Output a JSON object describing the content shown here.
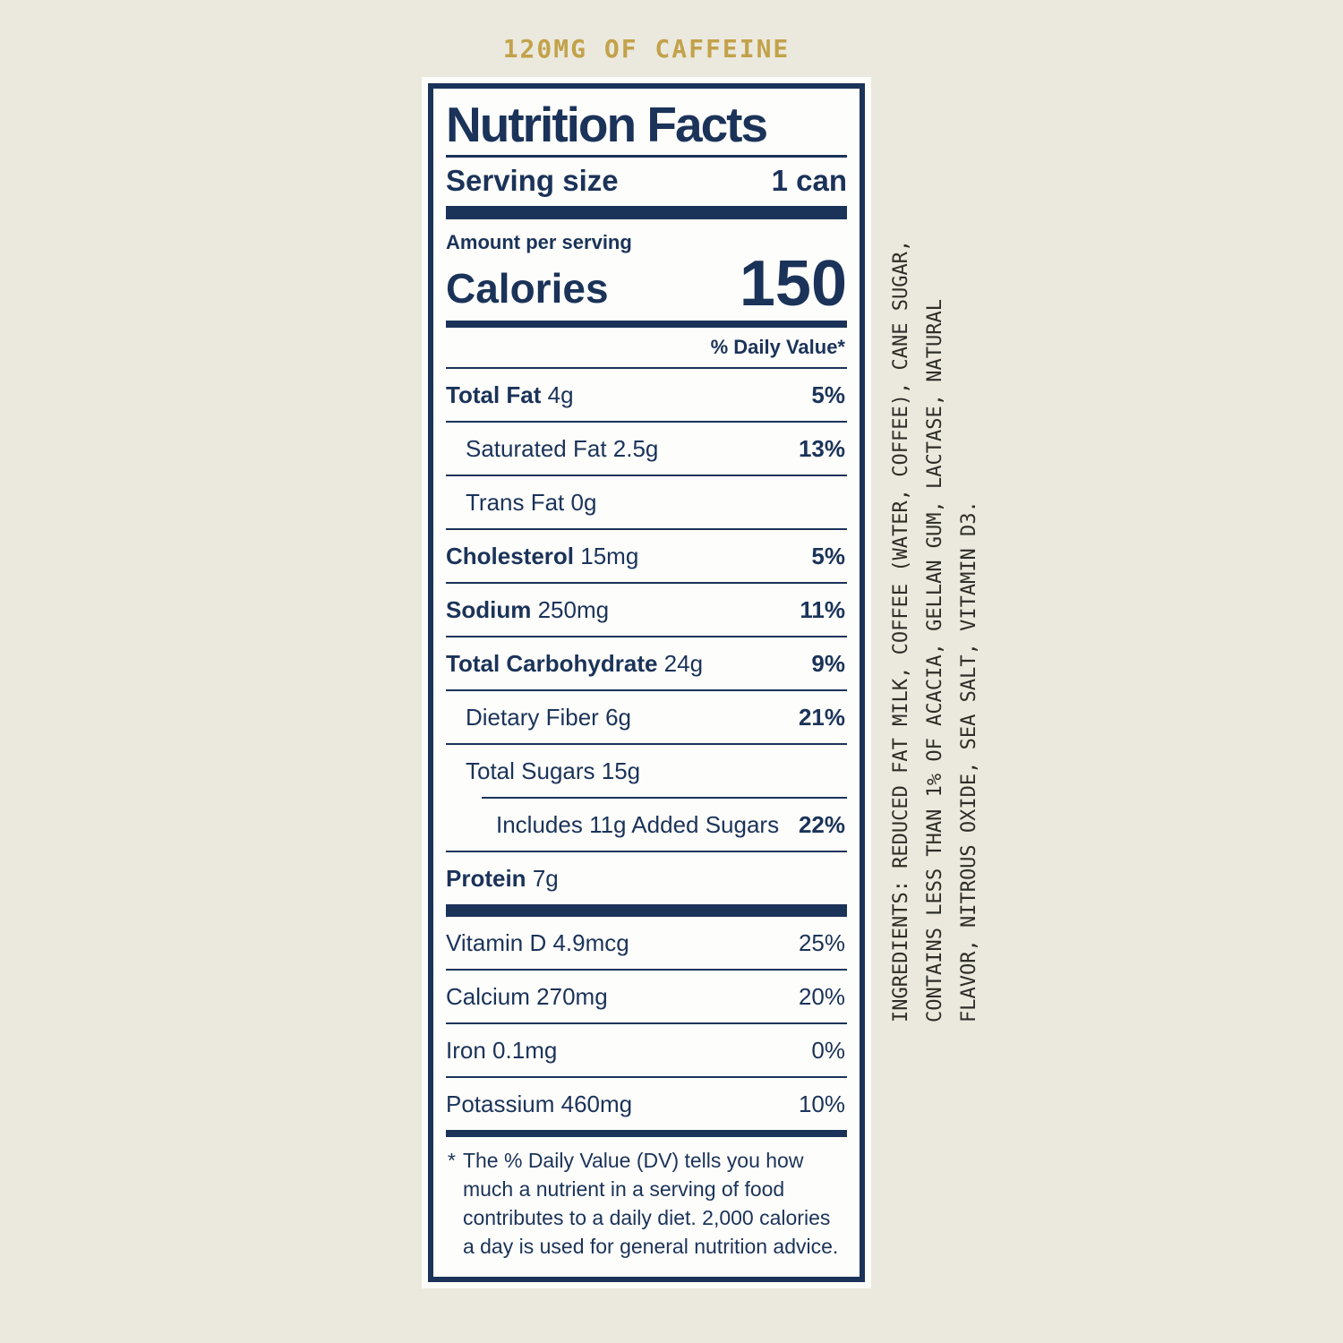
{
  "colors": {
    "navy": "#1b3359",
    "gold": "#c2a24b",
    "ink": "#2e2d28",
    "cream": "#ebe9dd",
    "label_bg": "#fdfdfb"
  },
  "header": {
    "caffeine_text": "120MG OF CAFFEINE"
  },
  "label": {
    "title": "Nutrition Facts",
    "serving": {
      "label": "Serving size",
      "value": "1 can"
    },
    "amount_per_serving": "Amount per serving",
    "calories": {
      "label": "Calories",
      "value": "150"
    },
    "daily_value_header": "% Daily Value*",
    "rows": [
      {
        "name": "Total Fat",
        "amount": "4g",
        "dv": "5%"
      },
      {
        "name": "Saturated Fat",
        "amount": "2.5g",
        "dv": "13%"
      },
      {
        "name": "Trans Fat",
        "amount": "0g",
        "dv": ""
      },
      {
        "name": "Cholesterol",
        "amount": "15mg",
        "dv": "5%"
      },
      {
        "name": "Sodium",
        "amount": "250mg",
        "dv": "11%"
      },
      {
        "name": "Total Carbohydrate",
        "amount": "24g",
        "dv": "9%"
      },
      {
        "name": "Dietary Fiber",
        "amount": "6g",
        "dv": "21%"
      },
      {
        "name": "Total Sugars",
        "amount": "15g",
        "dv": ""
      },
      {
        "name": "Includes 11g Added Sugars",
        "amount": "",
        "dv": "22%"
      },
      {
        "name": "Protein",
        "amount": "7g",
        "dv": ""
      }
    ],
    "micro_rows": [
      {
        "name": "Vitamin D",
        "amount": "4.9mcg",
        "dv": "25%"
      },
      {
        "name": "Calcium",
        "amount": "270mg",
        "dv": "20%"
      },
      {
        "name": "Iron",
        "amount": "0.1mg",
        "dv": "0%"
      },
      {
        "name": "Potassium",
        "amount": "460mg",
        "dv": "10%"
      }
    ],
    "footnote": {
      "marker": "*",
      "text": "The % Daily Value (DV) tells you how much a nutrient in a serving of food contributes to a daily diet. 2,000 calories a day is used for general nutrition advice."
    }
  },
  "ingredients": {
    "lines": [
      "INGREDIENTS: REDUCED FAT MILK, COFFEE (WATER, COFFEE), CANE SUGAR,",
      "CONTAINS LESS THAN 1% OF ACACIA, GELLAN GUM, LACTASE, NATURAL",
      "FLAVOR, NITROUS OXIDE, SEA SALT, VITAMIN D3."
    ]
  }
}
